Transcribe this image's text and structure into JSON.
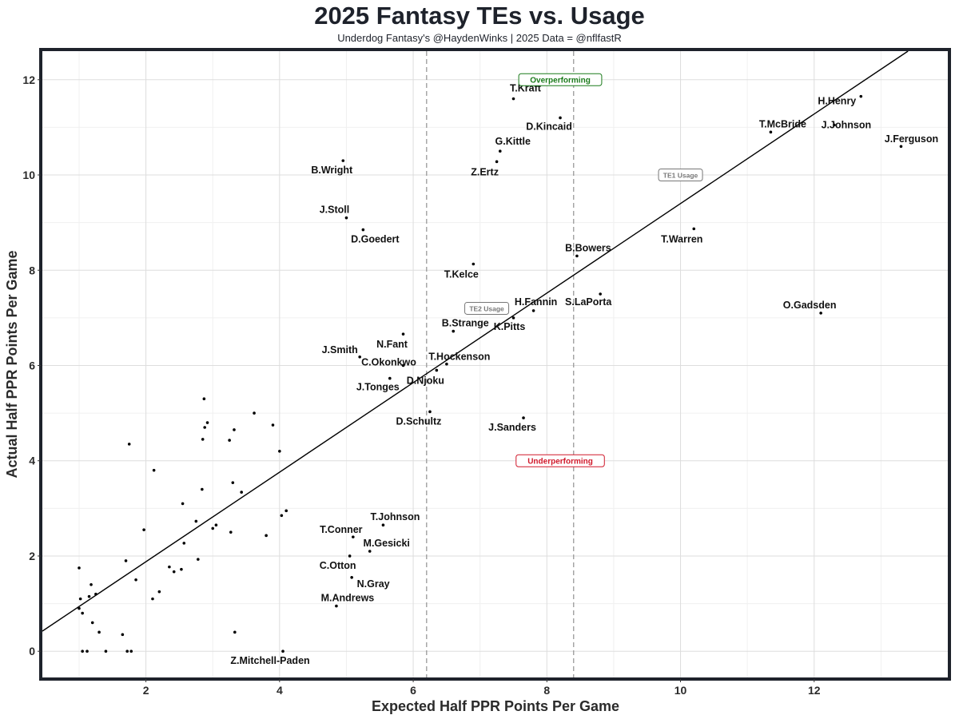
{
  "chart_data": {
    "type": "scatter",
    "title": "2025 Fantasy TEs vs. Usage",
    "subtitle": "Underdog Fantasy's @HaydenWinks | 2025 Data = @nflfastR",
    "xlabel": "Expected Half PPR Points Per Game",
    "ylabel": "Actual Half PPR Points Per Game",
    "xlim": [
      0.45,
      14.0
    ],
    "ylim": [
      -0.55,
      12.6
    ],
    "x_ticks": [
      2,
      4,
      6,
      8,
      10,
      12
    ],
    "y_ticks": [
      0,
      2,
      4,
      6,
      8,
      10,
      12
    ],
    "grid": true,
    "vlines": [
      6.2,
      8.4
    ],
    "reference_line": {
      "slope": 0.94,
      "intercept": 0.0
    },
    "annotations": [
      {
        "text": "Overperforming",
        "x": 8.2,
        "y": 12.0,
        "color": "#1a7a1a"
      },
      {
        "text": "Underperforming",
        "x": 8.2,
        "y": 4.0,
        "color": "#d0182a"
      },
      {
        "text": "TE1 Usage",
        "x": 10.0,
        "y": 10.0,
        "color": "#777777"
      },
      {
        "text": "TE2 Usage",
        "x": 7.1,
        "y": 7.2,
        "color": "#777777"
      }
    ],
    "labeled_points": [
      {
        "name": "T.Kraft",
        "x": 7.5,
        "y": 11.6
      },
      {
        "name": "D.Kincaid",
        "x": 8.2,
        "y": 11.2
      },
      {
        "name": "G.Kittle",
        "x": 7.3,
        "y": 10.5
      },
      {
        "name": "Z.Ertz",
        "x": 7.25,
        "y": 10.28
      },
      {
        "name": "B.Wright",
        "x": 4.95,
        "y": 10.3
      },
      {
        "name": "H.Henry",
        "x": 12.7,
        "y": 11.65
      },
      {
        "name": "J.Johnson",
        "x": 12.3,
        "y": 11.05
      },
      {
        "name": "T.McBride",
        "x": 11.35,
        "y": 10.9
      },
      {
        "name": "J.Ferguson",
        "x": 13.3,
        "y": 10.6
      },
      {
        "name": "J.Stoll",
        "x": 5.0,
        "y": 9.1
      },
      {
        "name": "D.Goedert",
        "x": 5.25,
        "y": 8.85
      },
      {
        "name": "T.Warren",
        "x": 10.2,
        "y": 8.87
      },
      {
        "name": "B.Bowers",
        "x": 8.45,
        "y": 8.3
      },
      {
        "name": "T.Kelce",
        "x": 6.9,
        "y": 8.13
      },
      {
        "name": "S.LaPorta",
        "x": 8.8,
        "y": 7.5
      },
      {
        "name": "H.Fannin",
        "x": 7.8,
        "y": 7.15
      },
      {
        "name": "K.Pitts",
        "x": 7.5,
        "y": 7.0
      },
      {
        "name": "O.Gadsden",
        "x": 12.1,
        "y": 7.1
      },
      {
        "name": "B.Strange",
        "x": 6.6,
        "y": 6.72
      },
      {
        "name": "N.Fant",
        "x": 5.85,
        "y": 6.66
      },
      {
        "name": "J.Smith",
        "x": 5.2,
        "y": 6.18
      },
      {
        "name": "C.Okonkwo",
        "x": 5.85,
        "y": 6.0
      },
      {
        "name": "T.Hockenson",
        "x": 6.5,
        "y": 6.03
      },
      {
        "name": "D.Njoku",
        "x": 6.35,
        "y": 5.9
      },
      {
        "name": "J.Tonges",
        "x": 5.65,
        "y": 5.73
      },
      {
        "name": "D.Schultz",
        "x": 6.25,
        "y": 5.03
      },
      {
        "name": "J.Sanders",
        "x": 7.65,
        "y": 4.9
      },
      {
        "name": "T.Johnson",
        "x": 5.55,
        "y": 2.65
      },
      {
        "name": "T.Conner",
        "x": 5.1,
        "y": 2.4
      },
      {
        "name": "M.Gesicki",
        "x": 5.35,
        "y": 2.1
      },
      {
        "name": "C.Otton",
        "x": 5.05,
        "y": 2.0
      },
      {
        "name": "N.Gray",
        "x": 5.08,
        "y": 1.55
      },
      {
        "name": "M.Andrews",
        "x": 4.85,
        "y": 0.95
      },
      {
        "name": "Z.Mitchell-Paden",
        "x": 4.05,
        "y": 0.0
      }
    ],
    "unlabeled_points": [
      {
        "x": 1.0,
        "y": 1.75
      },
      {
        "x": 1.0,
        "y": 0.9
      },
      {
        "x": 1.02,
        "y": 1.1
      },
      {
        "x": 1.05,
        "y": 0.8
      },
      {
        "x": 1.05,
        "y": 0.0
      },
      {
        "x": 1.12,
        "y": 0.0
      },
      {
        "x": 1.15,
        "y": 1.15
      },
      {
        "x": 1.18,
        "y": 1.4
      },
      {
        "x": 1.2,
        "y": 0.6
      },
      {
        "x": 1.25,
        "y": 1.2
      },
      {
        "x": 1.3,
        "y": 0.4
      },
      {
        "x": 1.4,
        "y": 0.0
      },
      {
        "x": 1.65,
        "y": 0.35
      },
      {
        "x": 1.7,
        "y": 1.9
      },
      {
        "x": 1.72,
        "y": 0.0
      },
      {
        "x": 1.78,
        "y": 0.0
      },
      {
        "x": 1.75,
        "y": 4.35
      },
      {
        "x": 1.85,
        "y": 1.5
      },
      {
        "x": 1.97,
        "y": 2.55
      },
      {
        "x": 2.1,
        "y": 1.1
      },
      {
        "x": 2.12,
        "y": 3.8
      },
      {
        "x": 2.2,
        "y": 1.25
      },
      {
        "x": 2.35,
        "y": 1.77
      },
      {
        "x": 2.42,
        "y": 1.67
      },
      {
        "x": 2.53,
        "y": 1.72
      },
      {
        "x": 2.55,
        "y": 3.1
      },
      {
        "x": 2.57,
        "y": 2.27
      },
      {
        "x": 2.75,
        "y": 2.73
      },
      {
        "x": 2.78,
        "y": 1.93
      },
      {
        "x": 2.84,
        "y": 3.4
      },
      {
        "x": 2.85,
        "y": 4.45
      },
      {
        "x": 2.87,
        "y": 5.3
      },
      {
        "x": 2.88,
        "y": 4.7
      },
      {
        "x": 2.92,
        "y": 4.8
      },
      {
        "x": 3.0,
        "y": 2.58
      },
      {
        "x": 3.05,
        "y": 2.65
      },
      {
        "x": 3.25,
        "y": 4.43
      },
      {
        "x": 3.27,
        "y": 2.5
      },
      {
        "x": 3.3,
        "y": 3.54
      },
      {
        "x": 3.32,
        "y": 4.65
      },
      {
        "x": 3.33,
        "y": 0.4
      },
      {
        "x": 3.43,
        "y": 3.34
      },
      {
        "x": 3.62,
        "y": 5.0
      },
      {
        "x": 3.8,
        "y": 2.43
      },
      {
        "x": 3.9,
        "y": 4.75
      },
      {
        "x": 4.0,
        "y": 4.2
      },
      {
        "x": 4.03,
        "y": 2.85
      },
      {
        "x": 4.1,
        "y": 2.95
      }
    ]
  }
}
